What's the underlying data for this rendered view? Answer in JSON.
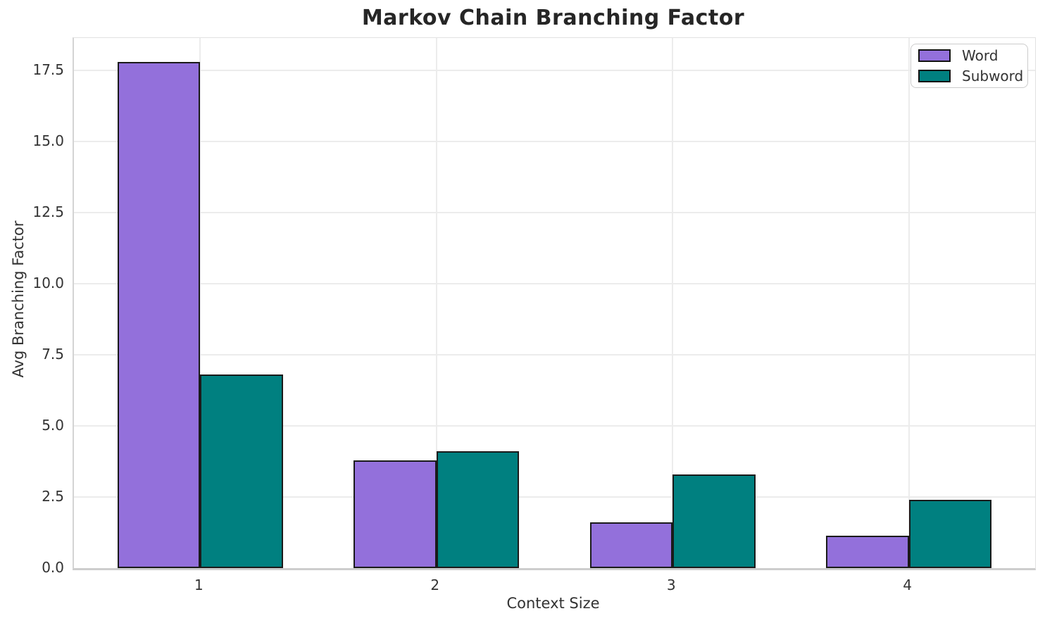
{
  "title": "Markov Chain Branching Factor",
  "chart_data": {
    "type": "bar",
    "title": "Markov Chain Branching Factor",
    "xlabel": "Context Size",
    "ylabel": "Avg Branching Factor",
    "categories": [
      "1",
      "2",
      "3",
      "4"
    ],
    "series": [
      {
        "name": "Word",
        "color": "#9370DB",
        "values": [
          17.8,
          3.8,
          1.6,
          1.15
        ]
      },
      {
        "name": "Subword",
        "color": "#008080",
        "values": [
          6.8,
          4.1,
          3.3,
          2.4
        ]
      }
    ],
    "bar_edge_color": "#1a1a1a",
    "bar_width_units": 0.35,
    "x_positions": [
      1,
      2,
      3,
      4
    ],
    "xlim": [
      0.465,
      4.535
    ],
    "ylim": [
      0,
      18.65
    ],
    "yticks": [
      0.0,
      2.5,
      5.0,
      7.5,
      10.0,
      12.5,
      15.0,
      17.5
    ],
    "ytick_labels": [
      "0.0",
      "2.5",
      "5.0",
      "7.5",
      "10.0",
      "12.5",
      "15.0",
      "17.5"
    ],
    "grid": true,
    "grid_color": "#ececec",
    "background_color": "#ffffff",
    "legend_position": "upper right",
    "legend_labels": [
      "Word",
      "Subword"
    ]
  }
}
